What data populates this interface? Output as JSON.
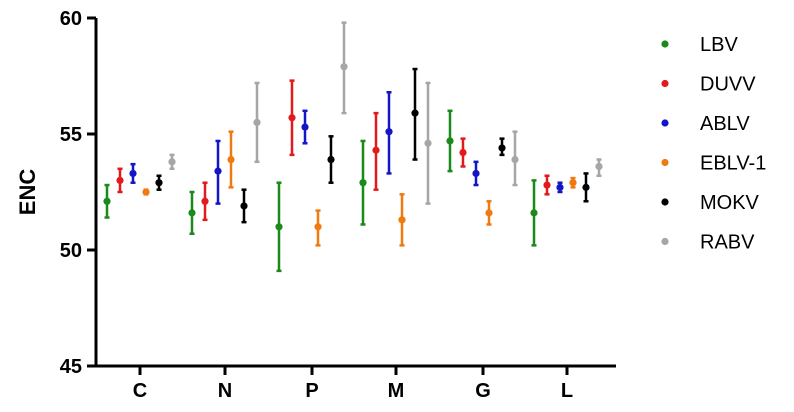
{
  "chart_data": {
    "type": "scatter",
    "subtype": "dot-with-error-bars",
    "title": "",
    "xlabel": "",
    "ylabel": "ENC",
    "ylim": [
      45,
      60
    ],
    "yticks": [
      45,
      50,
      55,
      60
    ],
    "grid": false,
    "legend_position": "right",
    "categories": [
      "C",
      "N",
      "P",
      "M",
      "G",
      "L"
    ],
    "series": [
      {
        "name": "LBV",
        "color": "#1a8a1a",
        "values": [
          52.1,
          51.6,
          51.0,
          52.9,
          54.7,
          51.6
        ],
        "error_low": [
          51.4,
          50.7,
          49.1,
          51.1,
          53.4,
          50.2
        ],
        "error_high": [
          52.8,
          52.5,
          52.9,
          54.7,
          56.0,
          53.0
        ]
      },
      {
        "name": "DUVV",
        "color": "#e31a1c",
        "values": [
          53.0,
          52.1,
          55.7,
          54.3,
          54.2,
          52.8
        ],
        "error_low": [
          52.5,
          51.3,
          54.1,
          52.6,
          53.6,
          52.4
        ],
        "error_high": [
          53.5,
          52.9,
          57.3,
          55.9,
          54.8,
          53.2
        ]
      },
      {
        "name": "ABLV",
        "color": "#1515c8",
        "values": [
          53.3,
          53.4,
          55.3,
          55.1,
          53.3,
          52.7
        ],
        "error_low": [
          52.9,
          52.0,
          54.6,
          53.3,
          52.8,
          52.5
        ],
        "error_high": [
          53.7,
          54.7,
          56.0,
          56.8,
          53.8,
          52.9
        ]
      },
      {
        "name": "EBLV-1",
        "color": "#f07a10",
        "values": [
          52.5,
          53.9,
          51.0,
          51.3,
          51.6,
          52.9
        ],
        "error_low": [
          52.4,
          52.7,
          50.2,
          50.2,
          51.1,
          52.7
        ],
        "error_high": [
          52.6,
          55.1,
          51.7,
          52.4,
          52.1,
          53.1
        ]
      },
      {
        "name": "MOKV",
        "color": "#000000",
        "values": [
          52.9,
          51.9,
          53.9,
          55.9,
          54.4,
          52.7
        ],
        "error_low": [
          52.6,
          51.2,
          52.9,
          53.9,
          54.1,
          52.1
        ],
        "error_high": [
          53.2,
          52.6,
          54.9,
          57.8,
          54.8,
          53.3
        ]
      },
      {
        "name": "RABV",
        "color": "#a6a6a6",
        "values": [
          53.8,
          55.5,
          57.9,
          54.6,
          53.9,
          53.6
        ],
        "error_low": [
          53.5,
          53.8,
          55.9,
          52.0,
          52.8,
          53.2
        ],
        "error_high": [
          54.1,
          57.2,
          59.8,
          57.2,
          55.1,
          53.9
        ]
      }
    ]
  }
}
